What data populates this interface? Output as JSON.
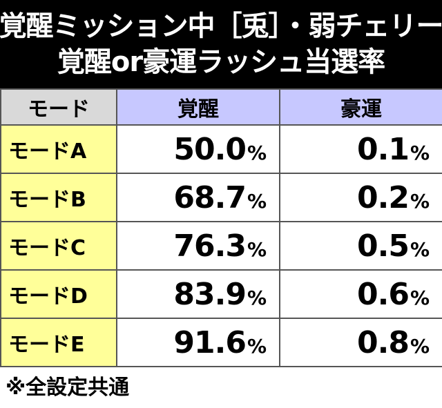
{
  "title": {
    "line1": "覚醒ミッション中［兎］・弱チェリー",
    "line2": "覚醒or豪運ラッシュ当選率"
  },
  "table": {
    "headers": [
      "モード",
      "覚醒",
      "豪運"
    ],
    "rows": [
      {
        "mode": "モードA",
        "kakusei": "50.0",
        "gouun": "0.1"
      },
      {
        "mode": "モードB",
        "kakusei": "68.7",
        "gouun": "0.2"
      },
      {
        "mode": "モードC",
        "kakusei": "76.3",
        "gouun": "0.5"
      },
      {
        "mode": "モードD",
        "kakusei": "83.9",
        "gouun": "0.6"
      },
      {
        "mode": "モードE",
        "kakusei": "91.6",
        "gouun": "0.8"
      }
    ],
    "unit": "%"
  },
  "footnote": "※全設定共通",
  "colors": {
    "header_bg": "#000000",
    "mode_header_bg": "#d9d9d9",
    "value_header_bg": "#c7c8ff",
    "mode_cell_bg": "#ffff99"
  }
}
